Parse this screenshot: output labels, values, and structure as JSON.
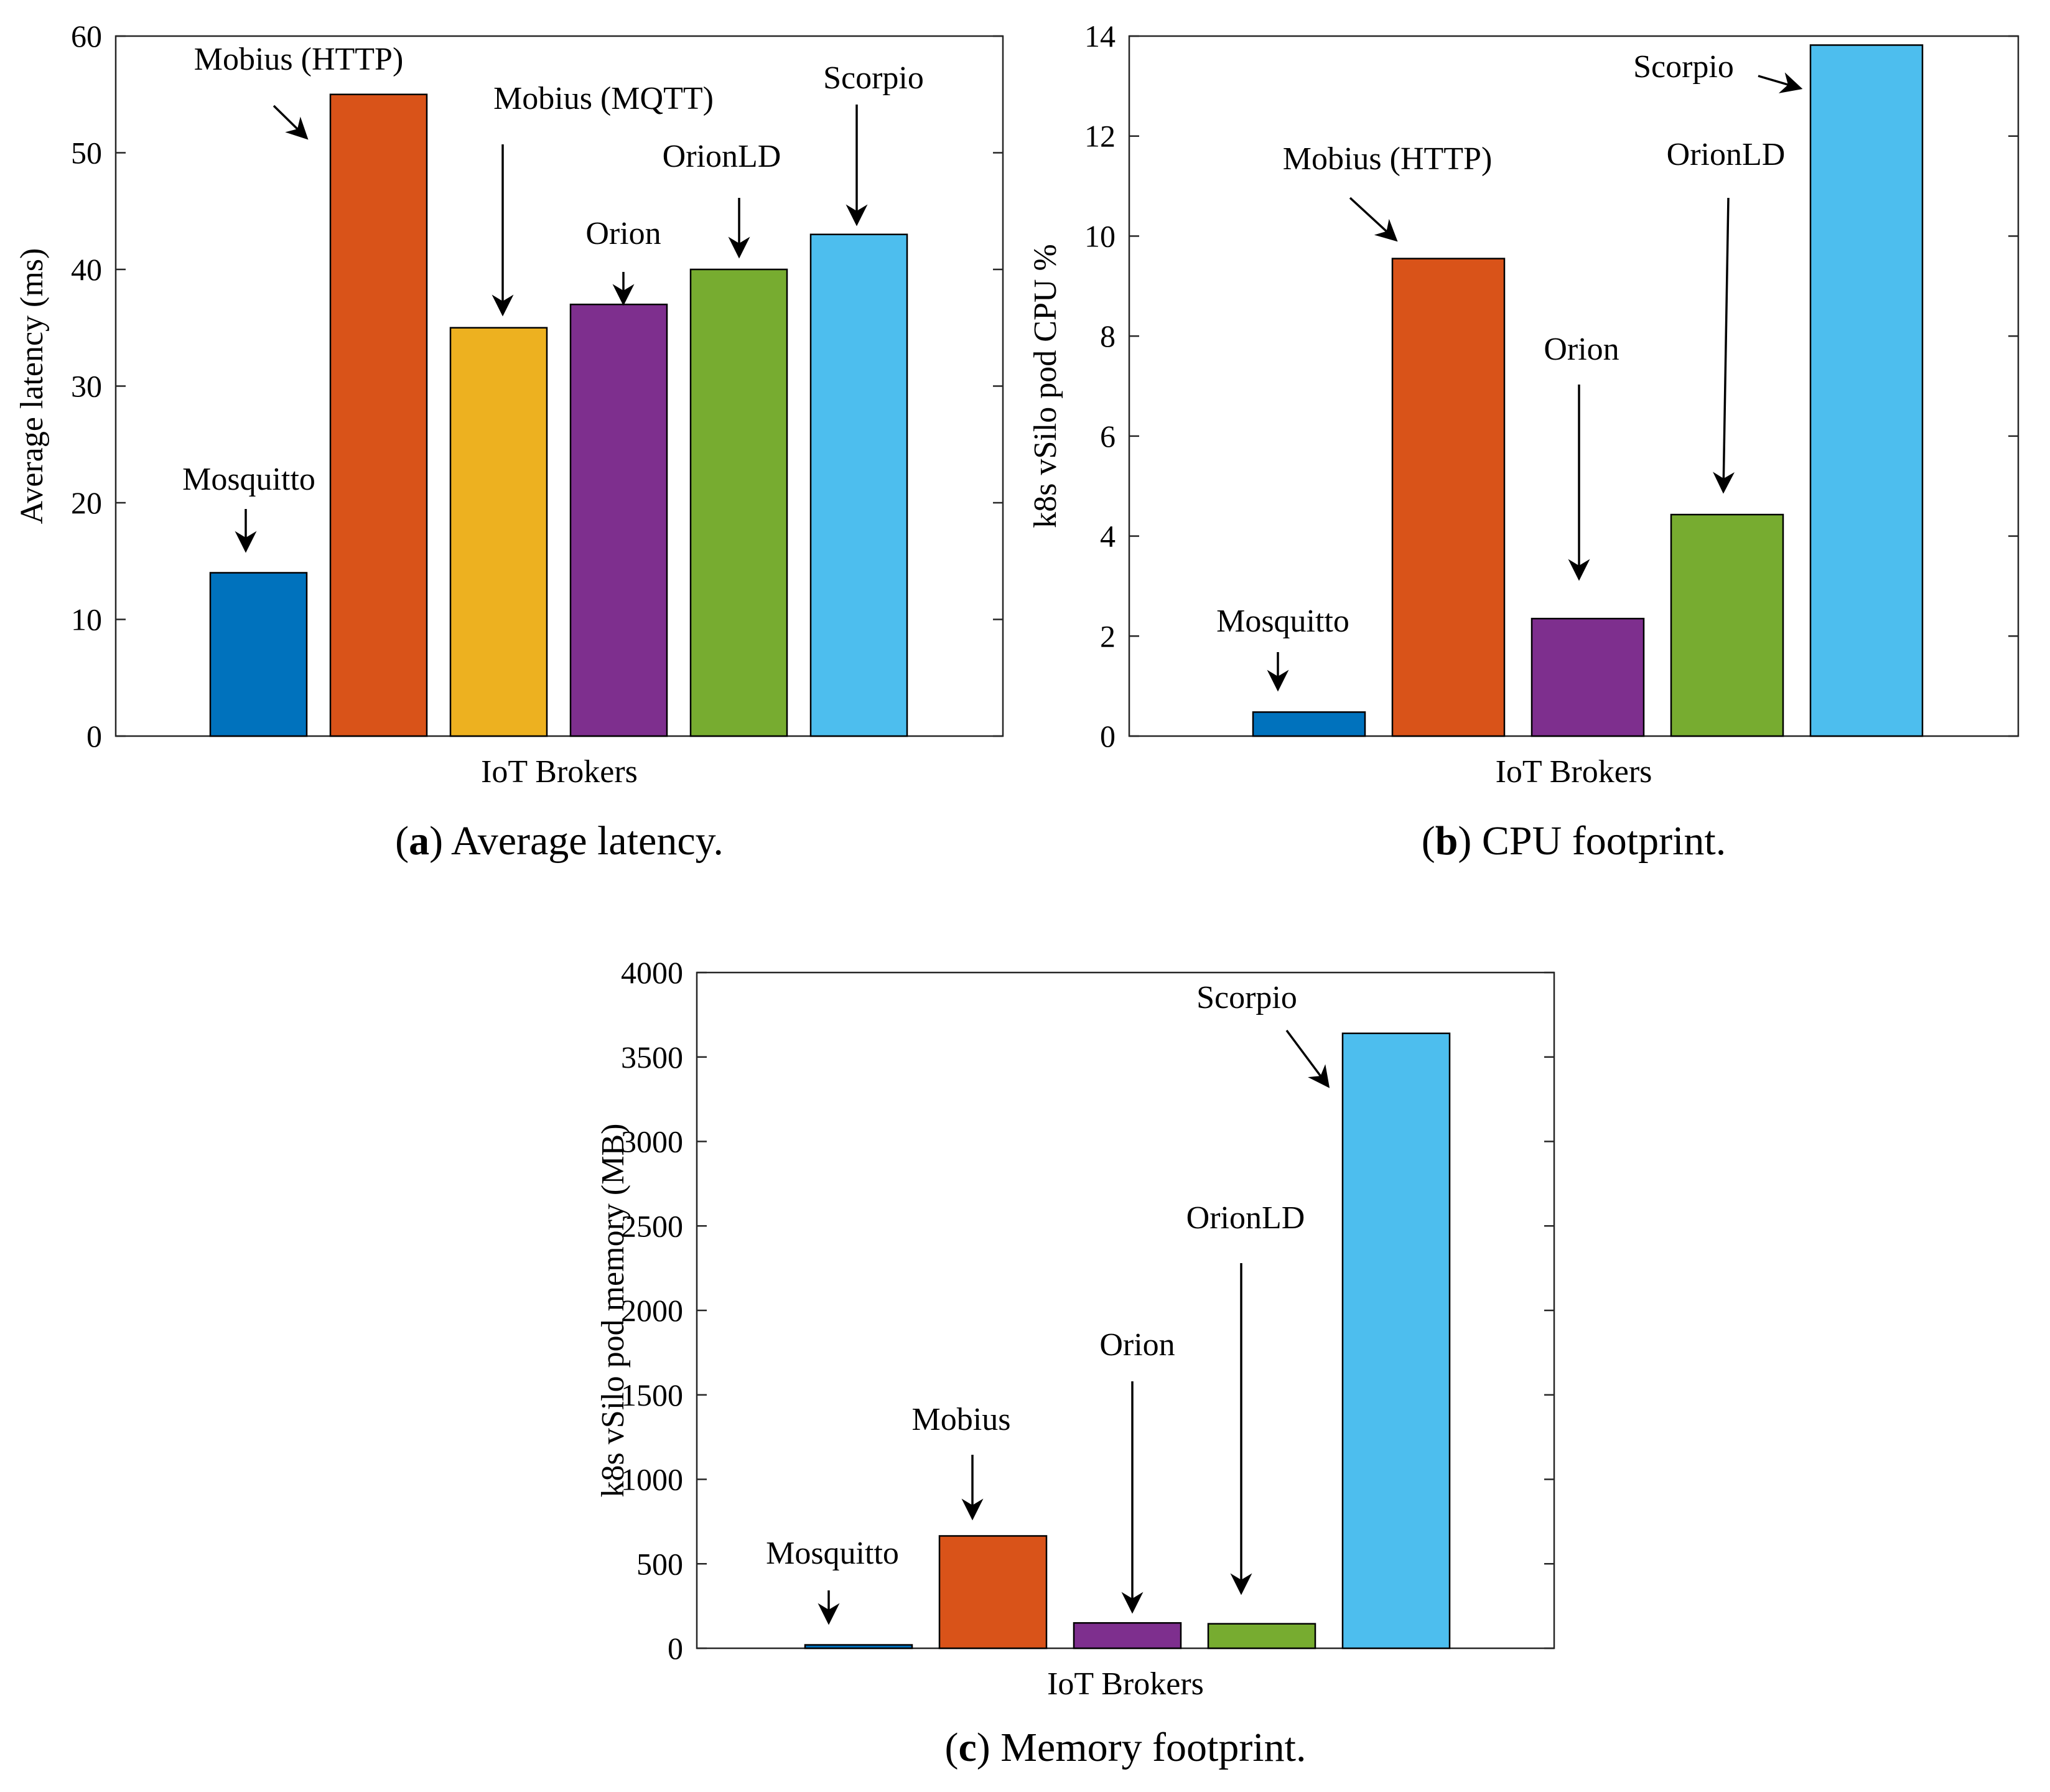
{
  "chart_data": [
    {
      "id": "a",
      "type": "bar",
      "categories": [
        "Mosquitto",
        "Mobius (HTTP)",
        "Mobius (MQTT)",
        "Orion",
        "OrionLD",
        "Scorpio"
      ],
      "values": [
        14,
        55,
        35,
        37,
        40,
        43
      ],
      "colors": [
        "#0072BD",
        "#D95319",
        "#EDB120",
        "#7E2F8E",
        "#77AC30",
        "#4DBEEE"
      ],
      "xlabel": "IoT Brokers",
      "ylabel": "Average latency (ms)",
      "ylim": [
        0,
        60
      ],
      "yticks": [
        0,
        10,
        20,
        30,
        40,
        50,
        60
      ],
      "caption_letter": "a",
      "caption_text": "Average latency."
    },
    {
      "id": "b",
      "type": "bar",
      "categories": [
        "Mosquitto",
        "Mobius (HTTP)",
        "Orion",
        "OrionLD",
        "Scorpio"
      ],
      "values": [
        0.48,
        9.55,
        2.35,
        4.43,
        13.82
      ],
      "colors": [
        "#0072BD",
        "#D95319",
        "#7E2F8E",
        "#77AC30",
        "#4DBEEE"
      ],
      "xlabel": "IoT Brokers",
      "ylabel": "k8s vSilo pod CPU %",
      "ylim": [
        0,
        14
      ],
      "yticks": [
        0,
        2,
        4,
        6,
        8,
        10,
        12,
        14
      ],
      "caption_letter": "b",
      "caption_text": "CPU footprint."
    },
    {
      "id": "c",
      "type": "bar",
      "categories": [
        "Mosquitto",
        "Mobius",
        "Orion",
        "OrionLD",
        "Scorpio"
      ],
      "values": [
        20,
        665,
        150,
        145,
        3640
      ],
      "colors": [
        "#0072BD",
        "#D95319",
        "#7E2F8E",
        "#77AC30",
        "#4DBEEE"
      ],
      "xlabel": "IoT Brokers",
      "ylabel": "k8s vSilo pod memory (MB)",
      "ylim": [
        0,
        4000
      ],
      "yticks": [
        0,
        500,
        1000,
        1500,
        2000,
        2500,
        3000,
        3500,
        4000
      ],
      "caption_letter": "c",
      "caption_text": "Memory footprint."
    }
  ]
}
